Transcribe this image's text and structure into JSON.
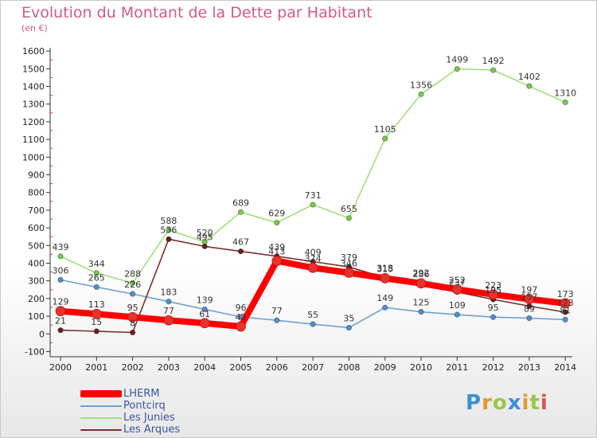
{
  "header": {
    "title": "Evolution du Montant de la Dette par Habitant",
    "subtitle": "(en €)"
  },
  "logo": {
    "text": "Proxiti",
    "letters": [
      "P",
      "r",
      "o",
      "x",
      "i",
      "t",
      "i"
    ]
  },
  "chart_data": {
    "type": "line",
    "title": "Evolution du Montant de la Dette par Habitant",
    "subtitle": "(en €)",
    "xlabel": "",
    "ylabel": "",
    "x": [
      "2000",
      "2001",
      "2002",
      "2003",
      "2004",
      "2005",
      "2006",
      "2007",
      "2008",
      "2009",
      "2010",
      "2011",
      "2012",
      "2013",
      "2014"
    ],
    "yticks": [
      "-100",
      "0",
      "100",
      "200",
      "300",
      "400",
      "500",
      "600",
      "700",
      "800",
      "900",
      "1000",
      "1100",
      "1200",
      "1300",
      "1400",
      "1500",
      "1600"
    ],
    "ylim": [
      -100,
      1600
    ],
    "grid": false,
    "legend_position": "bottom-left",
    "series": [
      {
        "name": "LHERM",
        "color": "#ff0000",
        "marker_color": "#e8322c",
        "emphasis": true,
        "values": [
          129,
          113,
          95,
          77,
          61,
          42,
          413,
          374,
          346,
          315,
          286,
          252,
          223,
          197,
          173
        ],
        "labels": [
          "129",
          "113",
          "95",
          "77",
          "61",
          "42",
          "413",
          "374",
          "346",
          "315",
          "286",
          "252",
          "223",
          "197",
          "173"
        ]
      },
      {
        "name": "Pontcirq",
        "color": "#6fa0cf",
        "marker_color": "#4d8fd0",
        "emphasis": false,
        "values": [
          306,
          265,
          226,
          183,
          139,
          96,
          77,
          55,
          35,
          149,
          125,
          109,
          95,
          89,
          81
        ],
        "labels": [
          "306",
          "265",
          "226",
          "183",
          "139",
          "96",
          "77",
          "55",
          "35",
          "149",
          "125",
          "109",
          "95",
          "89",
          "81"
        ]
      },
      {
        "name": "Les Junies",
        "color": "#9ee07a",
        "marker_color": "#78c94a",
        "emphasis": false,
        "values": [
          439,
          344,
          288,
          588,
          520,
          689,
          629,
          731,
          655,
          1105,
          1356,
          1499,
          1492,
          1402,
          1310
        ],
        "labels": [
          "439",
          "344",
          "288",
          "588",
          "520",
          "689",
          "629",
          "731",
          "655",
          "1105",
          "1356",
          "1499",
          "1492",
          "1402",
          "1310"
        ]
      },
      {
        "name": "Les Arques",
        "color": "#7a3030",
        "marker_color": "#6a1f1f",
        "emphasis": false,
        "values": [
          21,
          15,
          8,
          536,
          495,
          467,
          439,
          409,
          379,
          318,
          292,
          237,
          195,
          157,
          123
        ],
        "labels": [
          "21",
          "15",
          "8",
          "536",
          "495",
          "467",
          "439",
          "409",
          "379",
          "318",
          "292",
          "237",
          "195",
          "157",
          "123"
        ]
      }
    ]
  }
}
